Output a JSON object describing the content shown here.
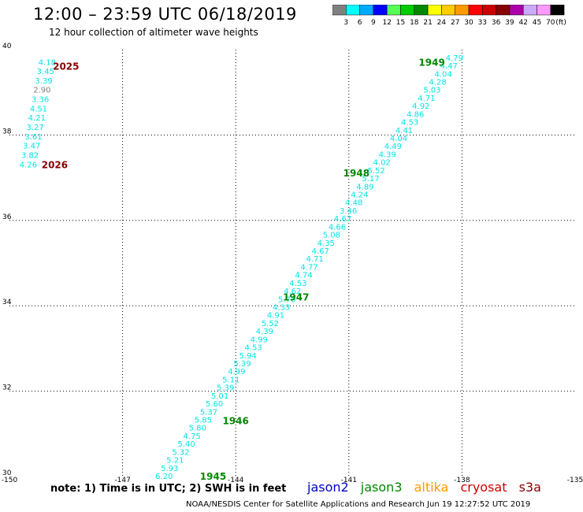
{
  "header": {
    "title": "12:00 – 23:59 UTC 06/18/2019",
    "subtitle": "12 hour collection of altimeter wave heights"
  },
  "colorbar": {
    "swatches": [
      "#808080",
      "#00ffff",
      "#00aaff",
      "#0000ff",
      "#55ff55",
      "#00cc00",
      "#008800",
      "#ffff00",
      "#ffcc00",
      "#ff9900",
      "#ff0000",
      "#cc0000",
      "#880000",
      "#aa00aa",
      "#ccaaff",
      "#ff99ff",
      "#000000"
    ],
    "labels": [
      "3",
      "6",
      "9",
      "12",
      "15",
      "18",
      "21",
      "24",
      "27",
      "30",
      "33",
      "36",
      "39",
      "42",
      "45",
      "70"
    ],
    "unit": "(ft)"
  },
  "footer": {
    "note": "note: 1) Time is in UTC; 2) SWH is in feet",
    "legend": [
      {
        "name": "jason2",
        "color": "#0000cc"
      },
      {
        "name": "jason3",
        "color": "#008800"
      },
      {
        "name": "altika",
        "color": "#ff9900"
      },
      {
        "name": "cryosat",
        "color": "#cc0000"
      },
      {
        "name": "s3a",
        "color": "#880000"
      }
    ],
    "credit": "NOAA/NESDIS Center for Satellite Applications and Research   Jun 19 12:27:52 UTC 2019"
  },
  "chart_data": {
    "type": "scatter",
    "xlim": [
      -150,
      -135
    ],
    "ylim": [
      30,
      40
    ],
    "x_ticks": [
      "-150",
      "-147",
      "-144",
      "-141",
      "-138",
      "-135"
    ],
    "y_ticks": [
      "30",
      "32",
      "34",
      "36",
      "38",
      "40"
    ],
    "grid": true,
    "series": [
      {
        "name": "jason3",
        "color": "#00e5e5",
        "start": [
          -145.9,
          30.0
        ],
        "end": [
          -138.2,
          39.8
        ],
        "values": [
          "6.20",
          "5.93",
          "5.21",
          "5.32",
          "5.40",
          "4.75",
          "5.80",
          "5.85",
          "5.37",
          "5.60",
          "5.01",
          "5.39",
          "5.11",
          "4.99",
          "5.39",
          "5.94",
          "4.53",
          "4.99",
          "4.39",
          "5.52",
          "4.91",
          "4.33",
          "5.76",
          "4.62",
          "4.53",
          "4.74",
          "4.77",
          "4.71",
          "4.67",
          "4.35",
          "5.08",
          "4.66",
          "4.67",
          "3.46",
          "4.48",
          "4.24",
          "4.89",
          "5.17",
          "5.52",
          "4.02",
          "4.39",
          "4.49",
          "4.04",
          "4.41",
          "4.53",
          "4.86",
          "4.92",
          "4.71",
          "5.03",
          "4.28",
          "4.04",
          "4.47",
          "4.79"
        ]
      },
      {
        "name": "cryosat",
        "color": "#00e5e5",
        "start": [
          -149.5,
          37.3
        ],
        "end": [
          -149.0,
          39.7
        ],
        "values": [
          "4.26",
          "3.82",
          "3.47",
          "3.61",
          "3.27",
          "4.21",
          "4.51",
          "3.36",
          "2.90",
          "3.39",
          "3.45",
          "4.18"
        ],
        "value_colors": [
          "#00e5e5",
          "#00e5e5",
          "#00e5e5",
          "#00e5e5",
          "#00e5e5",
          "#00e5e5",
          "#00e5e5",
          "#00e5e5",
          "#808080",
          "#00e5e5",
          "#00e5e5",
          "#00e5e5"
        ]
      }
    ],
    "annotations": [
      {
        "text": "1945",
        "lon": -144.6,
        "lat": 30.0,
        "color": "#008800"
      },
      {
        "text": "1946",
        "lon": -144.0,
        "lat": 31.3,
        "color": "#008800"
      },
      {
        "text": "1947",
        "lon": -142.4,
        "lat": 34.2,
        "color": "#008800"
      },
      {
        "text": "1948",
        "lon": -140.8,
        "lat": 37.1,
        "color": "#008800"
      },
      {
        "text": "1949",
        "lon": -138.8,
        "lat": 39.7,
        "color": "#008800"
      },
      {
        "text": "2025",
        "lon": -148.5,
        "lat": 39.6,
        "color": "#880000"
      },
      {
        "text": "2026",
        "lon": -148.8,
        "lat": 37.3,
        "color": "#880000"
      }
    ]
  }
}
